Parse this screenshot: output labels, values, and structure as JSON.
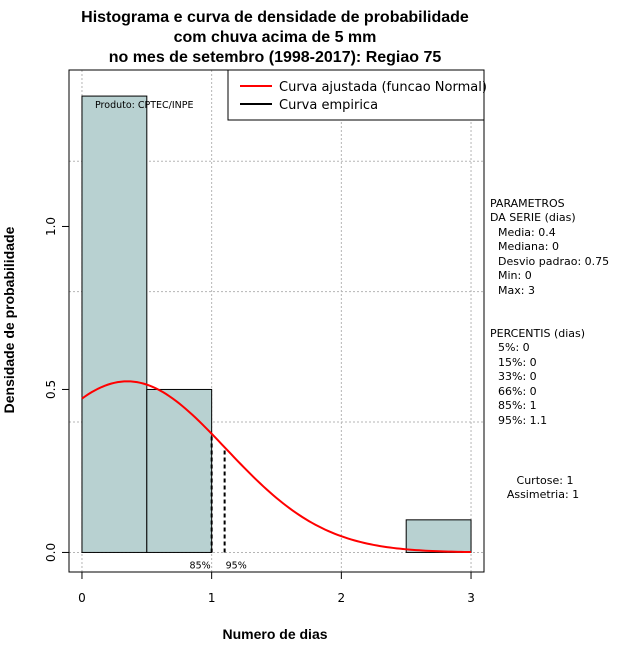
{
  "chart_data": {
    "type": "bar",
    "title_lines": [
      "Histograma e curva de densidade de probabilidade",
      "com chuva acima de 5 mm",
      "no mes de setembro (1998-2017): Regiao 75"
    ],
    "xlabel": "Numero de dias",
    "ylabel": "Densidade de probabilidade",
    "xlim": [
      -0.1,
      3.1
    ],
    "ylim": [
      -0.06,
      1.48
    ],
    "x_ticks": [
      "0",
      "1",
      "2",
      "3"
    ],
    "y_ticks": [
      "0.0",
      "0.5",
      "1.0"
    ],
    "grid": true,
    "bars": [
      {
        "x0": 0,
        "x1": 0.5,
        "density": 1.4
      },
      {
        "x0": 0.5,
        "x1": 1,
        "density": 0.5
      },
      {
        "x0": 1,
        "x1": 1.5,
        "density": 0
      },
      {
        "x0": 1.5,
        "x1": 2,
        "density": 0
      },
      {
        "x0": 2,
        "x1": 2.5,
        "density": 0
      },
      {
        "x0": 2.5,
        "x1": 3,
        "density": 0.1
      }
    ],
    "fitted_curve": {
      "distribution": "normal",
      "mean": 0.35,
      "sd": 0.76,
      "x_range": [
        0,
        3
      ],
      "color": "#ff0000"
    },
    "percentile_lines": [
      {
        "x": 1,
        "label": "85%"
      },
      {
        "x": 1.1,
        "label": "95%"
      }
    ],
    "legend": {
      "position": "top-right",
      "items": [
        {
          "label": "Curva ajustada (funcao Normal)",
          "color": "#ff0000"
        },
        {
          "label": "Curva empirica",
          "color": "#000000"
        }
      ]
    },
    "annotation": "Produto: CPTEC/INPE",
    "bar_color": "#b8d1d1"
  },
  "side_panel": {
    "params_title": [
      "PARAMETROS",
      "DA SERIE (dias)"
    ],
    "params": [
      "Media: 0.4",
      "Mediana: 0",
      "Desvio padrao: 0.75",
      "Min: 0",
      "Max: 3"
    ],
    "percentis_title": "PERCENTIS (dias)",
    "percentis": [
      "5%: 0",
      "15%: 0",
      "33%: 0",
      "66%: 0",
      "85%: 1",
      "95%: 1.1"
    ],
    "shape": [
      "Curtose: 1",
      "Assimetria: 1"
    ]
  }
}
